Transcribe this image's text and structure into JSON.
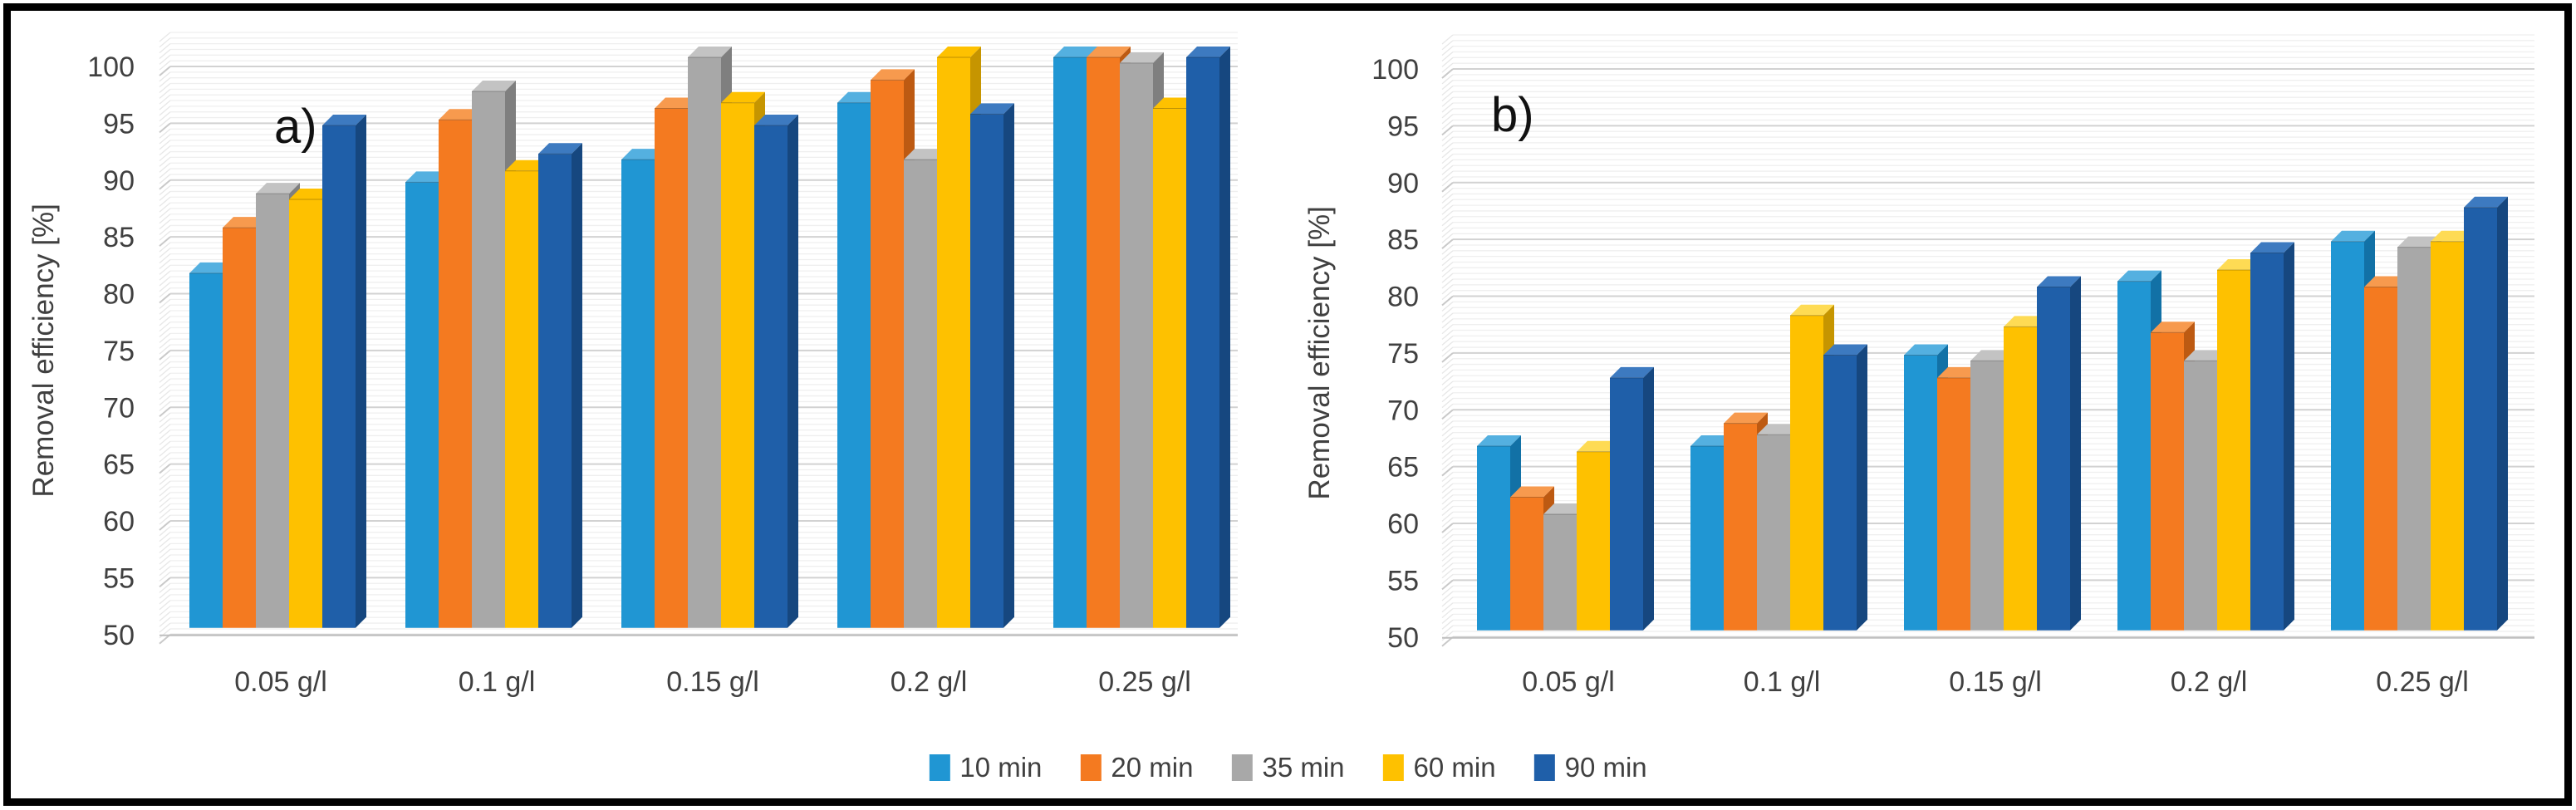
{
  "figure": {
    "border_color": "#000000",
    "background": "#ffffff"
  },
  "legend": {
    "items": [
      {
        "label": "10 min",
        "color": "#2096d3"
      },
      {
        "label": "20 min",
        "color": "#f47a20"
      },
      {
        "label": "35 min",
        "color": "#a8a8a8"
      },
      {
        "label": "60 min",
        "color": "#fec100"
      },
      {
        "label": "90 min",
        "color": "#1f5fa9"
      }
    ]
  },
  "chart_data": [
    {
      "type": "bar",
      "panel_label": "a)",
      "ylabel": "Removal efficiency [%]",
      "xlabel": "",
      "categories": [
        "0.05 g/l",
        "0.1 g/l",
        "0.15 g/l",
        "0.2 g/l",
        "0.25 g/l"
      ],
      "ylim": [
        50,
        100
      ],
      "ytick_step": 5,
      "minor_grid_step": 0.5,
      "grid": true,
      "legend_position": "bottom",
      "effect": "3d-column",
      "series": [
        {
          "name": "10 min",
          "color": "#2096d3",
          "color_side": "#1271a6",
          "color_top": "#54b0e0",
          "values": [
            81,
            89,
            91,
            96,
            100
          ]
        },
        {
          "name": "20 min",
          "color": "#f47a20",
          "color_side": "#bd5a12",
          "color_top": "#f79a4e",
          "values": [
            85,
            94.5,
            95.5,
            98,
            100
          ]
        },
        {
          "name": "35 min",
          "color": "#a8a8a8",
          "color_side": "#7f7f7f",
          "color_top": "#c3c3c3",
          "values": [
            88,
            97,
            100,
            91,
            99.5
          ]
        },
        {
          "name": "60 min",
          "color": "#fec100",
          "color_side": "#c69500",
          "color_top": "#fed port54",
          "values": [
            87.5,
            90,
            96,
            100,
            95.5
          ]
        },
        {
          "name": "90 min",
          "color": "#1f5fa9",
          "color_side": "#16477f",
          "color_top": "#3d7ac0",
          "values": [
            94,
            91.5,
            94,
            95,
            100
          ]
        }
      ]
    },
    {
      "type": "bar",
      "panel_label": "b)",
      "ylabel": "Removal efficiency [%]",
      "xlabel": "",
      "categories": [
        "0.05 g/l",
        "0.1 g/l",
        "0.15 g/l",
        "0.2 g/l",
        "0.25 g/l"
      ],
      "ylim": [
        50,
        100
      ],
      "ytick_step": 5,
      "minor_grid_step": 0.5,
      "grid": true,
      "legend_position": "bottom",
      "effect": "3d-column",
      "series": [
        {
          "name": "10 min",
          "color": "#2096d3",
          "color_side": "#1271a6",
          "color_top": "#54b0e0",
          "values": [
            66,
            66,
            74,
            80.5,
            84
          ]
        },
        {
          "name": "20 min",
          "color": "#f47a20",
          "color_side": "#bd5a12",
          "color_top": "#f79a4e",
          "values": [
            61.5,
            68,
            72,
            76,
            80
          ]
        },
        {
          "name": "35 min",
          "color": "#a8a8a8",
          "color_side": "#7f7f7f",
          "color_top": "#c3c3c3",
          "values": [
            60,
            67,
            73.5,
            73.5,
            83.5
          ]
        },
        {
          "name": "60 min",
          "color": "#fec100",
          "color_side": "#c69500",
          "color_top": "#fedb54",
          "values": [
            65.5,
            77.5,
            76.5,
            81.5,
            84
          ]
        },
        {
          "name": "90 min",
          "color": "#1f5fa9",
          "color_side": "#16477f",
          "color_top": "#3d7ac0",
          "values": [
            72,
            74,
            80,
            83,
            87
          ]
        }
      ]
    }
  ]
}
